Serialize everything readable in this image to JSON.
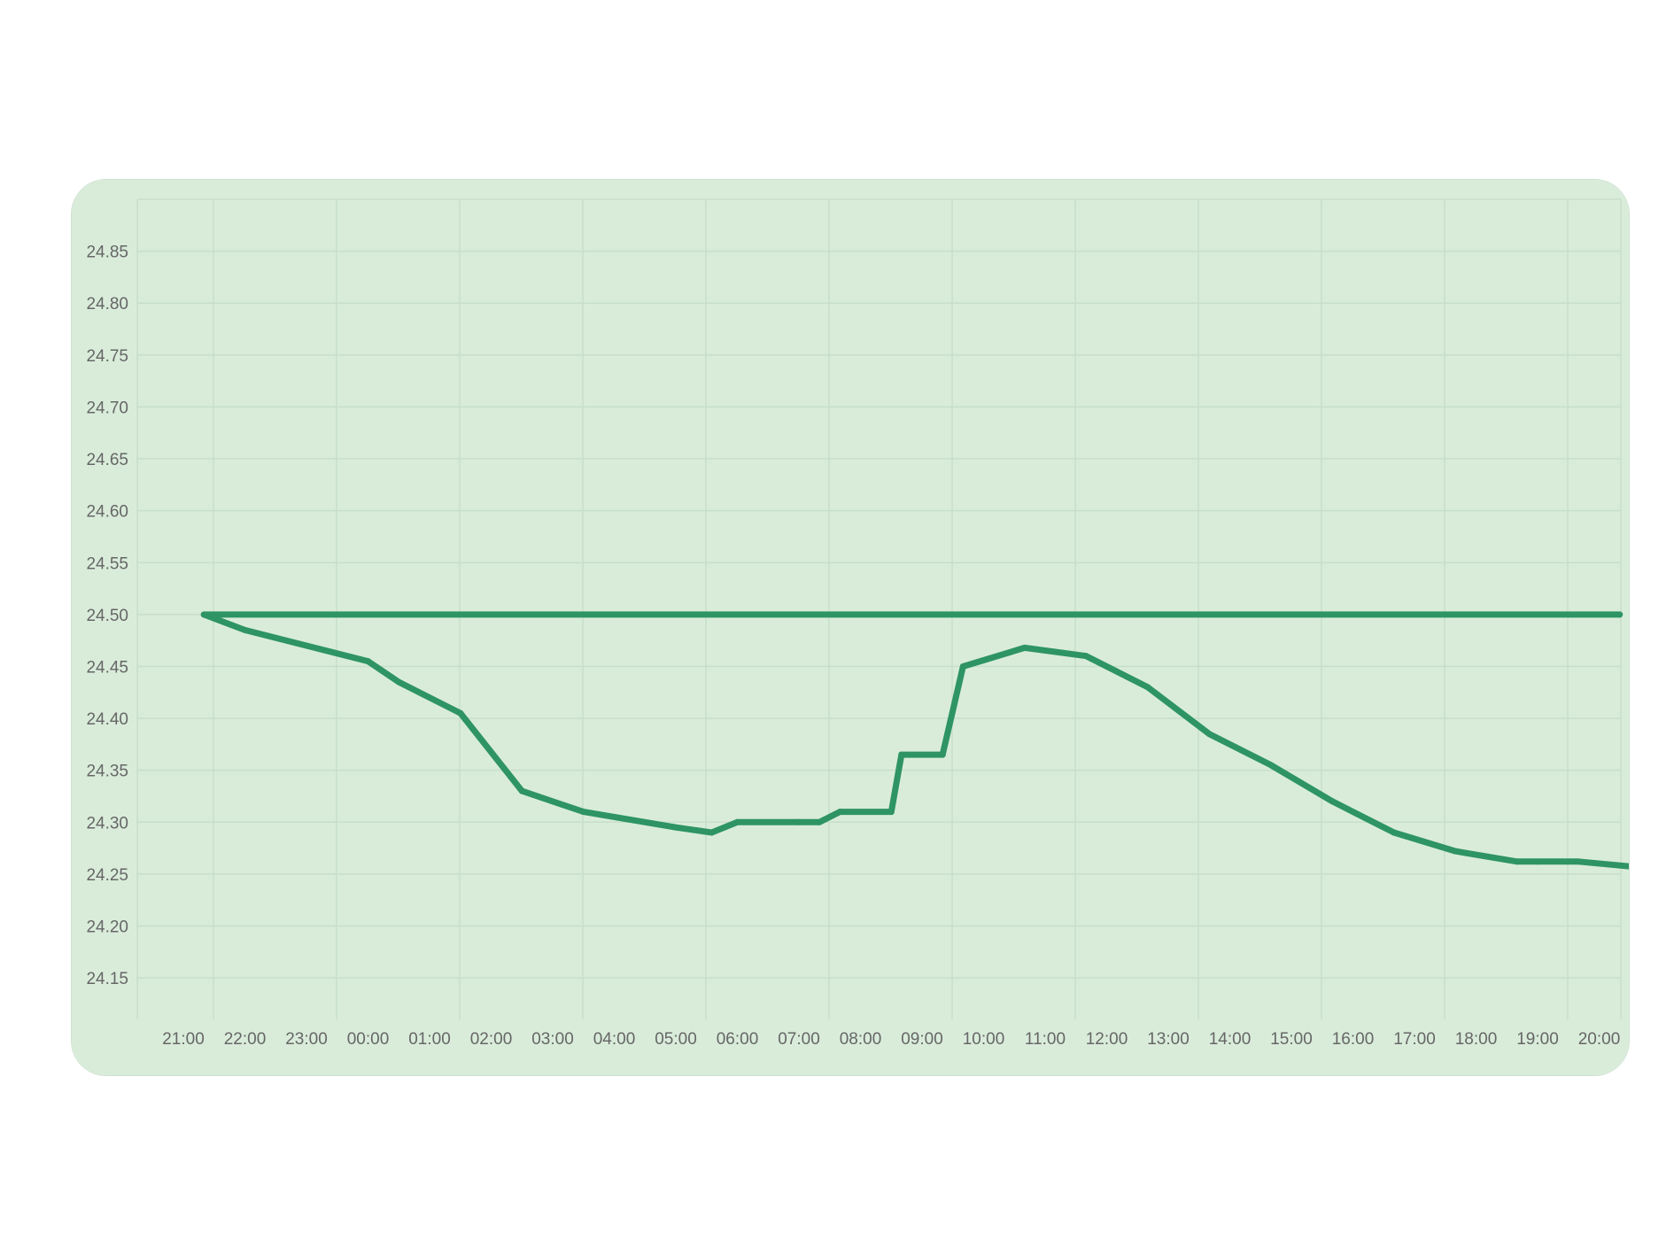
{
  "colors": {
    "card_background": "#d9ecda",
    "grid_line": "#c7dfca",
    "line": "#2e9463",
    "tick_text": "#666666"
  },
  "chart_data": {
    "type": "line",
    "title": "",
    "xlabel": "",
    "ylabel": "",
    "x_ticks": [
      "21:00",
      "22:00",
      "23:00",
      "00:00",
      "01:00",
      "02:00",
      "03:00",
      "04:00",
      "05:00",
      "06:00",
      "07:00",
      "08:00",
      "09:00",
      "10:00",
      "11:00",
      "12:00",
      "13:00",
      "14:00",
      "15:00",
      "16:00",
      "17:00",
      "18:00",
      "19:00",
      "20:00"
    ],
    "y_ticks": [
      "24.85",
      "24.80",
      "24.75",
      "24.70",
      "24.65",
      "24.60",
      "24.55",
      "24.50",
      "24.45",
      "24.40",
      "24.35",
      "24.30",
      "24.25",
      "24.20",
      "24.15"
    ],
    "ylim": [
      24.11,
      24.9
    ],
    "grid": true,
    "legend": "none",
    "series": [
      {
        "x": [
          "20:20",
          "21:20",
          "22:00",
          "23:00",
          "00:00",
          "00:30",
          "01:30",
          "02:30",
          "03:30",
          "05:00",
          "05:35",
          "06:00",
          "07:00",
          "07:20",
          "07:40",
          "08:30",
          "08:40",
          "09:20",
          "09:40",
          "10:40",
          "11:40",
          "12:40",
          "13:40",
          "14:40",
          "15:40",
          "16:40",
          "17:40",
          "18:40",
          "19:00",
          "19:40",
          "20:55"
        ],
        "values": [
          24.5,
          24.5,
          24.485,
          24.47,
          24.455,
          24.435,
          24.405,
          24.33,
          24.31,
          24.295,
          24.29,
          24.3,
          24.3,
          24.3,
          24.31,
          24.31,
          24.365,
          24.365,
          24.45,
          24.468,
          24.46,
          24.43,
          24.385,
          24.355,
          24.32,
          24.29,
          24.272,
          24.262,
          24.262,
          24.262,
          24.255
        ]
      }
    ]
  }
}
